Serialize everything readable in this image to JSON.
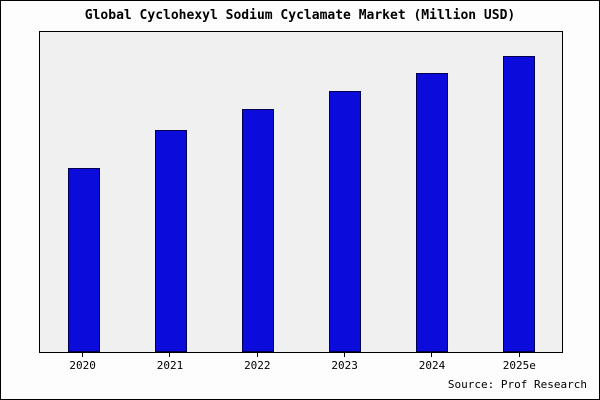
{
  "page": {
    "source_label": "Source: Prof Research"
  },
  "chart_data": {
    "type": "bar",
    "title": "Global Cyclohexyl Sodium Cyclamate Market (Million USD)",
    "categories": [
      "2020",
      "2021",
      "2022",
      "2023",
      "2024",
      "2025e"
    ],
    "values": [
      62,
      75,
      82,
      88,
      94,
      100
    ],
    "xlabel": "",
    "ylabel": "",
    "ylim": [
      0,
      108
    ],
    "grid": false,
    "legend": false,
    "colors": {
      "bar_fill": "#0b0bdb",
      "bar_border": "#00004d",
      "plot_background": "#f0f0f0",
      "page_background": "#fdfdfd",
      "frame_border": "#000000"
    }
  }
}
